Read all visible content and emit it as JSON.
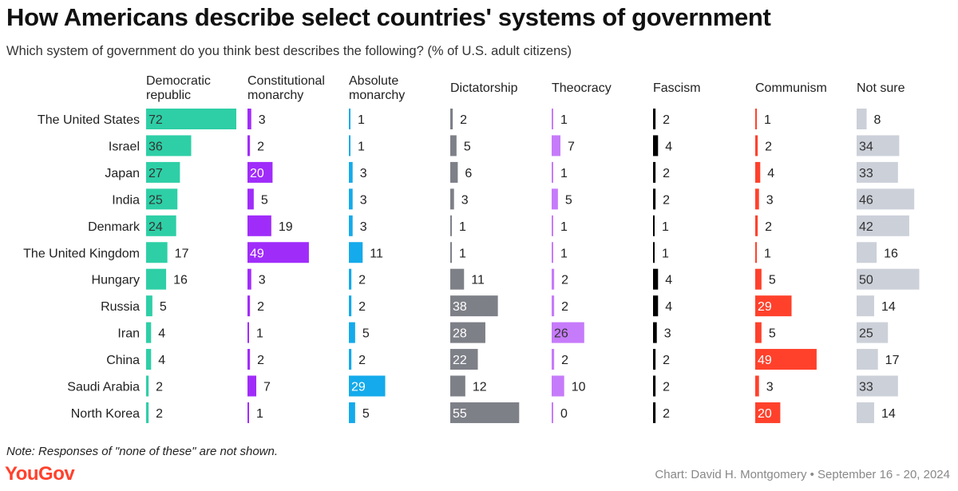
{
  "chart_data": {
    "type": "bar",
    "title": "How Americans describe select countries' systems of government",
    "subtitle": "Which system of government do you think best describes the following? (% of U.S. adult citizens)",
    "unit": "%",
    "categories": [
      "The United States",
      "Israel",
      "Japan",
      "India",
      "Denmark",
      "The United Kingdom",
      "Hungary",
      "Russia",
      "Iran",
      "China",
      "Saudi Arabia",
      "North Korea"
    ],
    "series": [
      {
        "name": "Democratic republic",
        "label_lines": [
          "Democratic",
          "republic"
        ],
        "color": "#2ecfa6",
        "values": [
          72,
          36,
          27,
          25,
          24,
          17,
          16,
          5,
          4,
          4,
          2,
          2
        ]
      },
      {
        "name": "Constitutional monarchy",
        "label_lines": [
          "Constitutional",
          "monarchy"
        ],
        "color": "#a02cfa",
        "values": [
          3,
          2,
          20,
          5,
          19,
          49,
          3,
          2,
          1,
          2,
          7,
          1
        ]
      },
      {
        "name": "Absolute monarchy",
        "label_lines": [
          "Absolute",
          "monarchy"
        ],
        "color": "#14aaeb",
        "values": [
          1,
          1,
          3,
          3,
          3,
          11,
          2,
          2,
          5,
          2,
          29,
          5
        ]
      },
      {
        "name": "Dictatorship",
        "label_lines": [
          "Dictatorship"
        ],
        "color": "#7e8088",
        "values": [
          2,
          5,
          6,
          3,
          1,
          1,
          11,
          38,
          28,
          22,
          12,
          55
        ]
      },
      {
        "name": "Theocracy",
        "label_lines": [
          "Theocracy"
        ],
        "color": "#c67bfa",
        "values": [
          1,
          7,
          1,
          5,
          1,
          1,
          2,
          2,
          26,
          2,
          10,
          0
        ]
      },
      {
        "name": "Fascism",
        "label_lines": [
          "Fascism"
        ],
        "color": "#000000",
        "values": [
          2,
          4,
          2,
          2,
          1,
          1,
          4,
          4,
          3,
          2,
          2,
          2
        ]
      },
      {
        "name": "Communism",
        "label_lines": [
          "Communism"
        ],
        "color": "#ff412c",
        "values": [
          1,
          2,
          4,
          3,
          2,
          1,
          5,
          29,
          5,
          49,
          3,
          20
        ]
      },
      {
        "name": "Not sure",
        "label_lines": [
          "Not sure"
        ],
        "color": "#ccd0d9",
        "values": [
          8,
          34,
          33,
          46,
          42,
          16,
          50,
          14,
          25,
          17,
          33,
          14
        ]
      }
    ],
    "xlim": [
      0,
      72
    ],
    "legend": "column headers above each panel",
    "grid": false
  },
  "footer": {
    "note": "Note: Responses of \"none of these\" are not shown.",
    "brand": "YouGov",
    "credit": "Chart: David H. Montgomery • September 16 - 20, 2024"
  }
}
